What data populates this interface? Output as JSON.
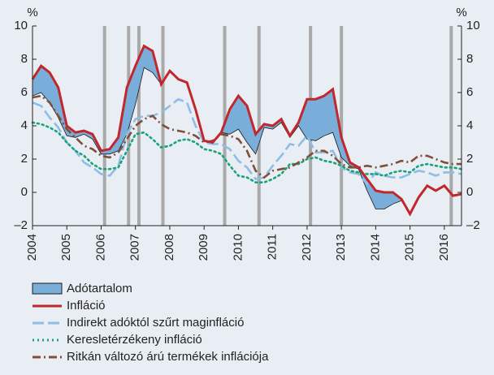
{
  "chart_data": {
    "type": "line",
    "y_unit": "%",
    "y2_unit": "%",
    "x": [
      2004,
      2004.25,
      2004.5,
      2004.75,
      2005,
      2005.25,
      2005.5,
      2005.75,
      2006,
      2006.25,
      2006.5,
      2006.75,
      2007,
      2007.25,
      2007.5,
      2007.75,
      2008,
      2008.25,
      2008.5,
      2008.75,
      2009,
      2009.25,
      2009.5,
      2009.75,
      2010,
      2010.25,
      2010.5,
      2010.75,
      2011,
      2011.25,
      2011.5,
      2011.75,
      2012,
      2012.25,
      2012.5,
      2012.75,
      2013,
      2013.25,
      2013.5,
      2013.75,
      2014,
      2014.25,
      2014.5,
      2014.75,
      2015,
      2015.25,
      2015.5,
      2015.75,
      2016,
      2016.25,
      2016.5
    ],
    "xlim": [
      2004,
      2016.5
    ],
    "xticks": [
      2004,
      2005,
      2006,
      2007,
      2008,
      2009,
      2010,
      2011,
      2012,
      2013,
      2014,
      2015,
      2016
    ],
    "ylim": [
      -2,
      10
    ],
    "yticks": [
      {
        "value": -2,
        "label": "–2"
      },
      0,
      2,
      4,
      6,
      8,
      10
    ],
    "y2lim": [
      -2,
      10
    ],
    "y2ticks": [
      {
        "value": -2,
        "label": "–2"
      },
      0,
      2,
      4,
      6,
      8,
      10
    ],
    "vlines": [
      2006.1,
      2006.8,
      2007.1,
      2007.8,
      2009.6,
      2010.6,
      2012.1,
      2013.0,
      2016.2
    ],
    "vline_color": "#a9a9a9",
    "series": [
      {
        "name": "Adótartalom",
        "color": "#79aedb",
        "style": "area",
        "stacked_on": 1,
        "values": [
          1.0,
          1.6,
          1.8,
          1.8,
          0.6,
          0.3,
          0.2,
          0.3,
          0.2,
          0.3,
          0.8,
          2.8,
          2.3,
          1.3,
          1.3,
          0,
          0,
          0,
          0,
          0,
          0,
          0,
          0,
          1.5,
          2.0,
          2.2,
          1.2,
          0.2,
          0.2,
          0.2,
          0.1,
          0.2,
          2.4,
          2.5,
          2.4,
          2.6,
          1.2,
          0.2,
          0.1,
          0.7,
          1.1,
          1.0,
          0.7,
          0.1,
          0,
          0,
          0,
          0,
          0,
          0,
          0
        ]
      },
      {
        "name": "Infláció",
        "color": "#c0282d",
        "style": "solid",
        "values": [
          6.8,
          7.6,
          7.2,
          6.3,
          4.0,
          3.6,
          3.7,
          3.5,
          2.5,
          2.6,
          3.3,
          6.3,
          7.6,
          8.8,
          8.5,
          6.5,
          7.3,
          6.8,
          6.6,
          5.0,
          3.1,
          3.0,
          3.6,
          5.0,
          5.8,
          5.2,
          3.5,
          4.1,
          4.0,
          4.4,
          3.4,
          4.2,
          5.6,
          5.6,
          5.8,
          6.2,
          3.3,
          1.8,
          1.5,
          0.8,
          0.1,
          0.0,
          0.0,
          -0.4,
          -1.3,
          -0.3,
          0.4,
          0.1,
          0.4,
          -0.2,
          -0.1
        ]
      },
      {
        "name": "Indirekt adóktól szűrt maginfláció",
        "color": "#8fbde6",
        "style": "dashed",
        "values": [
          5.4,
          5.2,
          4.5,
          3.9,
          3.0,
          2.5,
          1.8,
          1.5,
          1.1,
          1.0,
          1.6,
          3.5,
          4.4,
          4.6,
          4.6,
          4.8,
          5.2,
          5.6,
          5.4,
          4.0,
          3.0,
          2.9,
          2.9,
          2.6,
          1.9,
          1.5,
          0.8,
          0.9,
          1.6,
          2.2,
          2.9,
          2.8,
          3.4,
          2.4,
          2.4,
          2.5,
          1.5,
          1.2,
          1.1,
          0.5,
          1.2,
          1.0,
          0.9,
          0.9,
          1.1,
          1.3,
          1.2,
          1.0,
          1.2,
          1.2,
          1.1
        ]
      },
      {
        "name": "Keresletérzékeny infláció",
        "color": "#1aa37a",
        "style": "dotted",
        "values": [
          4.2,
          4.1,
          3.9,
          3.6,
          3.0,
          2.5,
          2.2,
          1.7,
          1.4,
          1.4,
          1.5,
          2.5,
          3.5,
          3.6,
          3.2,
          2.7,
          2.8,
          3.1,
          3.2,
          3.0,
          2.6,
          2.5,
          2.3,
          1.6,
          1.0,
          0.9,
          0.6,
          0.6,
          0.8,
          1.1,
          1.7,
          1.7,
          2.0,
          2.1,
          1.9,
          1.8,
          1.6,
          1.3,
          1.2,
          1.1,
          1.1,
          1.0,
          1.2,
          1.3,
          1.2,
          1.6,
          1.7,
          1.6,
          1.5,
          1.5,
          1.4
        ]
      },
      {
        "name": "Ritkán változó árú termékek inflációja",
        "color": "#7f4f3a",
        "style": "dashdot",
        "values": [
          5.7,
          5.8,
          5.4,
          4.6,
          3.8,
          3.3,
          2.8,
          2.6,
          2.2,
          2.1,
          2.4,
          3.2,
          4.0,
          4.4,
          4.6,
          4.1,
          3.8,
          3.7,
          3.6,
          3.4,
          3.0,
          3.1,
          3.5,
          3.4,
          3.2,
          2.5,
          1.3,
          0.9,
          1.3,
          1.4,
          1.5,
          1.8,
          2.1,
          2.5,
          2.5,
          2.2,
          1.7,
          1.5,
          1.5,
          1.6,
          1.5,
          1.6,
          1.7,
          1.9,
          1.8,
          2.2,
          2.2,
          2.0,
          1.8,
          1.7,
          1.7
        ]
      }
    ]
  }
}
